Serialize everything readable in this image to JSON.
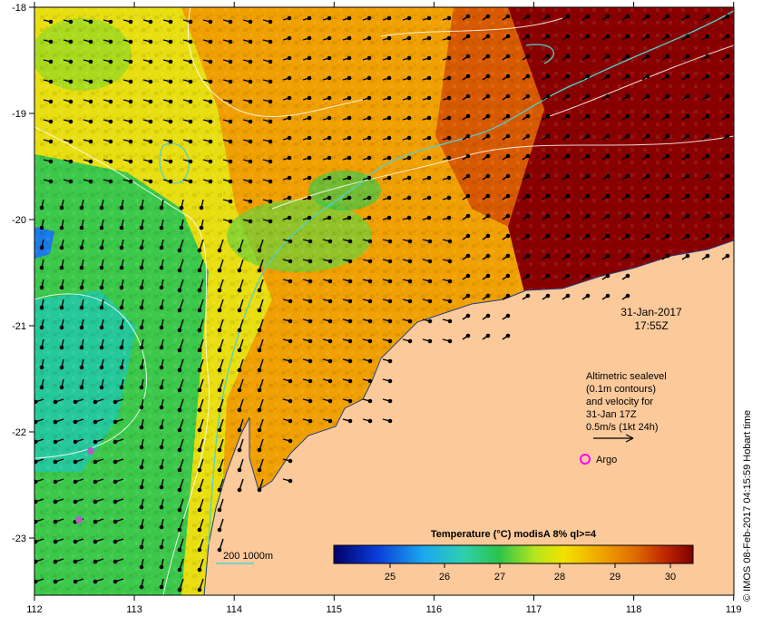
{
  "map": {
    "date": "31-Jan-2017",
    "time": "17:55Z",
    "x_ticks": [
      "112",
      "113",
      "114",
      "115",
      "116",
      "117",
      "118",
      "119"
    ],
    "y_ticks": [
      "-18",
      "-19",
      "-20",
      "-21",
      "-22",
      "-23"
    ],
    "legend_text": [
      "Altimetric sealevel",
      "(0.1m contours)",
      "and velocity for",
      "31-Jan 17Z",
      "0.5m/s (1kt 24h)"
    ],
    "argo_label": "Argo",
    "isobath_label": "200  1000m",
    "colorbar_title": "Temperature (°C) modisA 8% ql>=4",
    "colorbar_ticks": [
      "25",
      "26",
      "27",
      "28",
      "29",
      "30"
    ],
    "credit": "© IMOS 08-Feb-2017 04:15:59 Hobart time",
    "colors": {
      "land": "#fbc99a",
      "argo": "#ff00ff",
      "isobath": "#4fd1d1",
      "contour": "#ffffff"
    }
  }
}
